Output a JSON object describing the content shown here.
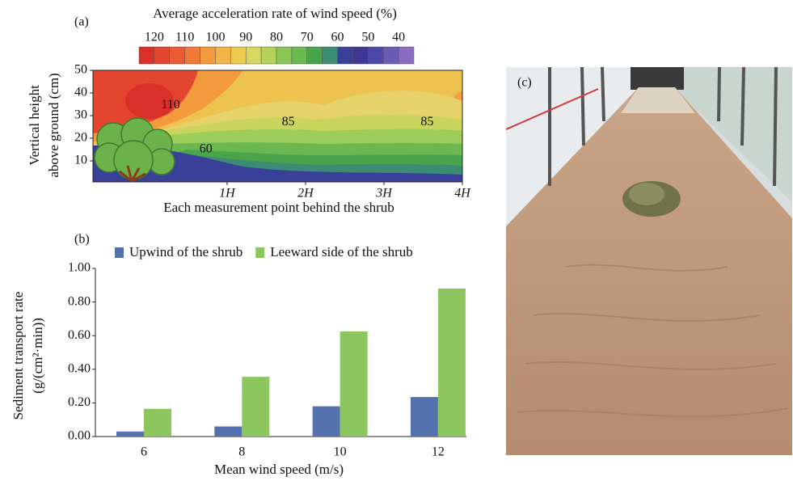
{
  "chart_data": [
    {
      "type": "contour",
      "panel_label": "(a)",
      "title": "Average acceleration rate of wind speed (%)",
      "colorbar": {
        "lim": [
          125,
          35
        ],
        "ticks": [
          120,
          110,
          100,
          90,
          80,
          70,
          60,
          50,
          40
        ],
        "colors": [
          "#d9302a",
          "#e4452f",
          "#ea5a33",
          "#ef7a37",
          "#f29a3c",
          "#f2b447",
          "#eccb4e",
          "#d8d860",
          "#b4d25a",
          "#8cc656",
          "#6cb850",
          "#4aa44c",
          "#3c8c74",
          "#38409a",
          "#3d3894",
          "#4c4aa8",
          "#6a5cb4",
          "#8a6cc0"
        ]
      },
      "x_label": "Each measurement point behind the shrub",
      "y_label": [
        "Vertical height",
        "above ground (cm)"
      ],
      "xlim": [
        -0.71,
        4
      ],
      "ylim": [
        0,
        50
      ],
      "xticks": [
        {
          "value": 1,
          "label": "1H"
        },
        {
          "value": 2,
          "label": "2H"
        },
        {
          "value": 3,
          "label": "3H"
        },
        {
          "value": 4,
          "label": "4H"
        }
      ],
      "yticks": [
        10,
        20,
        30,
        40,
        50
      ],
      "contour_labels": [
        {
          "value": 110,
          "x": 0.28,
          "y": 34.6
        },
        {
          "value": 85,
          "x": 1.78,
          "y": 27
        },
        {
          "value": 85,
          "x": 3.55,
          "y": 27
        },
        {
          "value": 60,
          "x": 0.73,
          "y": 15
        }
      ]
    },
    {
      "type": "bar",
      "panel_label": "(b)",
      "x_label": "Mean wind speed (m/s)",
      "y_label": [
        "Sediment transport rate",
        "(g/(cm²·min))"
      ],
      "categories": [
        "6",
        "8",
        "10",
        "12"
      ],
      "series": [
        {
          "name": "Upwind of the shrub",
          "color": "#5672ae",
          "values": [
            0.03,
            0.06,
            0.18,
            0.235
          ]
        },
        {
          "name": "Leeward side of the shrub",
          "color": "#8dc55f",
          "values": [
            0.165,
            0.355,
            0.625,
            0.88
          ]
        }
      ],
      "ylim": [
        0,
        1
      ],
      "yticks": [
        {
          "value": 0,
          "label": "0.00"
        },
        {
          "value": 0.2,
          "label": "0.20"
        },
        {
          "value": 0.4,
          "label": "0.40"
        },
        {
          "value": 0.6,
          "label": "0.60"
        },
        {
          "value": 0.8,
          "label": "0.80"
        },
        {
          "value": 1,
          "label": "1.00"
        }
      ],
      "legend": "top"
    }
  ],
  "photo": {
    "label": "(c)"
  }
}
